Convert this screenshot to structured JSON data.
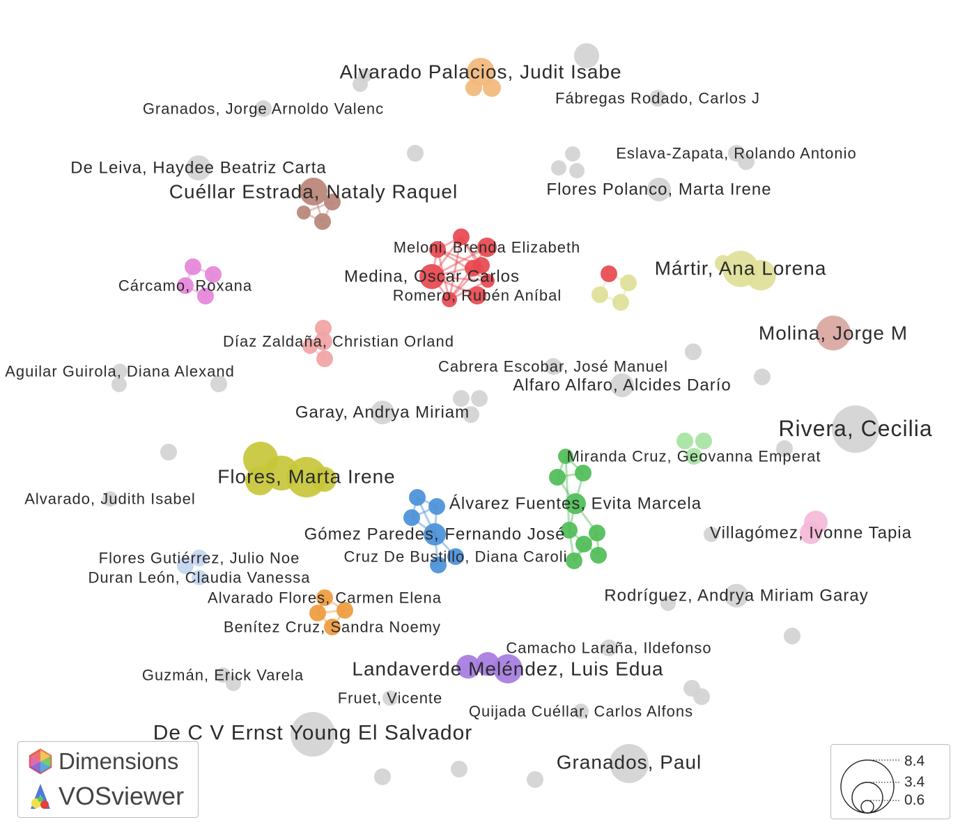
{
  "nodes": [
    {
      "id": "alvarado-palacios",
      "label": "Alvarado Palacios, Judit Isabe",
      "color": "#f2b979",
      "weight": 5
    },
    {
      "id": "granados-jorge",
      "label": "Granados, Jorge Arnoldo Valenc",
      "color": "#d3d3d3",
      "weight": 1
    },
    {
      "id": "fabregas",
      "label": "Fábregas Rodado, Carlos J",
      "color": "#d3d3d3",
      "weight": 1
    },
    {
      "id": "eslava",
      "label": "Eslava-Zapata, Rolando Antonio",
      "color": "#d3d3d3",
      "weight": 1
    },
    {
      "id": "de-leiva",
      "label": "De Leiva, Haydee Beatriz Carta",
      "color": "#d3d3d3",
      "weight": 2
    },
    {
      "id": "cuellar",
      "label": "Cuéllar Estrada, Nataly Raquel",
      "color": "#b98478",
      "weight": 4
    },
    {
      "id": "flores-polanco",
      "label": "Flores Polanco, Marta Irene",
      "color": "#d3d3d3",
      "weight": 2
    },
    {
      "id": "meloni",
      "label": "Meloni, Brenda Elizabeth",
      "color": "#e8484f",
      "weight": 2
    },
    {
      "id": "medina",
      "label": "Medina, Oscar Carlos",
      "color": "#e8484f",
      "weight": 3
    },
    {
      "id": "romero",
      "label": "Romero, Rubén Aníbal",
      "color": "#e8484f",
      "weight": 2
    },
    {
      "id": "martir",
      "label": "Mártir, Ana Lorena",
      "color": "#dfdf98",
      "weight": 5
    },
    {
      "id": "carcamo",
      "label": "Cárcamo, Roxana",
      "color": "#e585d9",
      "weight": 1
    },
    {
      "id": "molina",
      "label": "Molina, Jorge M",
      "color": "#d9a6a0",
      "weight": 5
    },
    {
      "id": "diaz-zaldana",
      "label": "Díaz Zaldaña, Christian Orland",
      "color": "#f1a3a3",
      "weight": 1
    },
    {
      "id": "cabrera",
      "label": "Cabrera Escobar, José Manuel",
      "color": "#d3d3d3",
      "weight": 1
    },
    {
      "id": "aguilar",
      "label": "Aguilar Guirola, Diana Alexand",
      "color": "#d3d3d3",
      "weight": 1
    },
    {
      "id": "alfaro",
      "label": "Alfaro Alfaro, Alcides Darío",
      "color": "#d3d3d3",
      "weight": 2
    },
    {
      "id": "garay",
      "label": "Garay, Andrya Miriam",
      "color": "#d3d3d3",
      "weight": 2
    },
    {
      "id": "rivera",
      "label": "Rivera, Cecilia",
      "color": "#d3d3d3",
      "weight": 8.4
    },
    {
      "id": "miranda",
      "label": "Miranda Cruz, Geovanna Emperat",
      "color": "#a6e3a1",
      "weight": 1
    },
    {
      "id": "flores-marta",
      "label": "Flores, Marta Irene",
      "color": "#c7c73a",
      "weight": 7
    },
    {
      "id": "alvarado-judith",
      "label": "Alvarado, Judith Isabel",
      "color": "#d3d3d3",
      "weight": 1
    },
    {
      "id": "alvarez-fuentes",
      "label": "Álvarez Fuentes, Evita Marcela",
      "color": "#4fbd57",
      "weight": 2
    },
    {
      "id": "gomez-paredes",
      "label": "Gómez Paredes, Fernando José",
      "color": "#4a90d9",
      "weight": 2
    },
    {
      "id": "villagomez",
      "label": "Villagómez, Ivonne Tapia",
      "color": "#f4b8d8",
      "weight": 3
    },
    {
      "id": "flores-gutierrez",
      "label": "Flores Gutiérrez, Julio Noe",
      "color": "#c4d6f0",
      "weight": 1
    },
    {
      "id": "cruz-bustillo",
      "label": "Cruz De Bustillo, Diana Caroli",
      "color": "#4a90d9",
      "weight": 1
    },
    {
      "id": "duran",
      "label": "Duran León, Claudia Vanessa",
      "color": "#c4d6f0",
      "weight": 1
    },
    {
      "id": "alvarado-flores",
      "label": "Alvarado Flores, Carmen Elena",
      "color": "#ee9b3e",
      "weight": 1
    },
    {
      "id": "rodriguez",
      "label": "Rodríguez, Andrya Miriam Garay",
      "color": "#d3d3d3",
      "weight": 2
    },
    {
      "id": "benitez",
      "label": "Benítez Cruz, Sandra Noemy",
      "color": "#ee9b3e",
      "weight": 1
    },
    {
      "id": "camacho",
      "label": "Camacho Laraña, Ildefonso",
      "color": "#d3d3d3",
      "weight": 1
    },
    {
      "id": "landaverde",
      "label": "Landaverde Meléndez, Luis Edua",
      "color": "#a57be0",
      "weight": 4
    },
    {
      "id": "guzman",
      "label": "Guzmán, Erick Varela",
      "color": "#d3d3d3",
      "weight": 1
    },
    {
      "id": "fruet",
      "label": "Fruet, Vicente",
      "color": "#d3d3d3",
      "weight": 1
    },
    {
      "id": "quijada",
      "label": "Quijada Cuéllar, Carlos Alfons",
      "color": "#d3d3d3",
      "weight": 1
    },
    {
      "id": "de-c-v",
      "label": "De C V Ernst Young El Salvador",
      "color": "#d3d3d3",
      "weight": 7
    },
    {
      "id": "granados-paul",
      "label": "Granados, Paul",
      "color": "#d3d3d3",
      "weight": 6
    }
  ],
  "brand": {
    "dimensions": "Dimensions",
    "vosviewer": "VOSviewer"
  },
  "legend": {
    "values": [
      "8.4",
      "3.4",
      "0.6"
    ]
  }
}
